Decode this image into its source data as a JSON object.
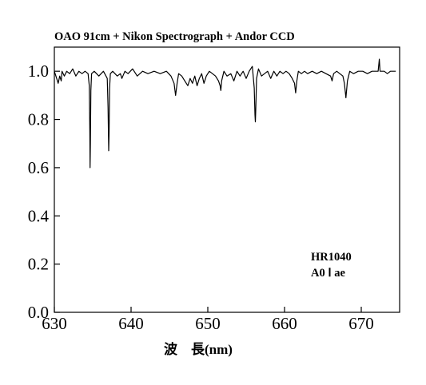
{
  "chart_data": {
    "type": "line",
    "title": "OAO 91cm + Nikon Spectrograph + Andor CCD",
    "xlabel": "波　長(nm)",
    "ylabel": "",
    "xlim": [
      630,
      675
    ],
    "ylim": [
      0.0,
      1.1
    ],
    "x_ticks": [
      630,
      640,
      650,
      660,
      670
    ],
    "x_tick_labels": [
      "630",
      "640",
      "650",
      "660",
      "670"
    ],
    "y_ticks": [
      0.0,
      0.2,
      0.4,
      0.6,
      0.8,
      1.0
    ],
    "y_tick_labels": [
      "0.0",
      "0.2",
      "0.4",
      "0.6",
      "0.8",
      "1.0"
    ],
    "grid": false,
    "annotations": [
      "HR1040",
      "A0 Ⅰ ae"
    ],
    "series": [
      {
        "color": "#000000",
        "x": [
          630.0,
          630.3,
          630.5,
          630.7,
          630.9,
          631.0,
          631.3,
          631.6,
          632.0,
          632.4,
          632.8,
          633.2,
          633.6,
          634.0,
          634.4,
          634.55,
          634.62,
          634.66,
          634.7,
          634.76,
          634.85,
          635.2,
          635.8,
          636.4,
          636.9,
          637.0,
          637.08,
          637.14,
          637.2,
          637.3,
          637.6,
          638.2,
          638.6,
          638.8,
          639.2,
          639.6,
          640.2,
          640.8,
          641.5,
          642.2,
          643.0,
          643.8,
          644.6,
          645.2,
          645.6,
          645.8,
          646.0,
          646.2,
          646.6,
          647.0,
          647.4,
          647.7,
          648.0,
          648.3,
          648.6,
          648.9,
          649.2,
          649.5,
          649.8,
          650.2,
          650.6,
          651.0,
          651.4,
          651.6,
          651.7,
          651.8,
          652.1,
          652.5,
          653.0,
          653.4,
          653.8,
          654.2,
          654.6,
          655.0,
          655.4,
          655.8,
          656.05,
          656.15,
          656.2,
          656.25,
          656.35,
          656.6,
          657.0,
          657.4,
          657.8,
          658.2,
          658.6,
          659.0,
          659.4,
          659.8,
          660.2,
          660.6,
          661.0,
          661.3,
          661.45,
          661.6,
          661.8,
          662.2,
          662.6,
          663.0,
          663.6,
          664.2,
          664.8,
          665.4,
          666.0,
          666.2,
          666.4,
          666.8,
          667.2,
          667.6,
          667.8,
          668.0,
          668.2,
          668.5,
          669.0,
          669.6,
          670.2,
          670.8,
          671.4,
          672.0,
          672.2,
          672.35,
          672.45,
          672.6,
          673.0,
          673.4,
          673.8,
          674.2,
          674.5
        ],
        "y": [
          1.0,
          0.97,
          0.95,
          0.98,
          0.96,
          1.0,
          0.98,
          1.0,
          0.99,
          1.01,
          0.98,
          1.0,
          0.99,
          1.0,
          0.99,
          0.94,
          0.75,
          0.6,
          0.7,
          0.92,
          0.99,
          1.0,
          0.98,
          1.0,
          0.97,
          0.85,
          0.67,
          0.75,
          0.93,
          0.99,
          1.0,
          0.98,
          0.99,
          0.97,
          1.0,
          0.99,
          1.01,
          0.98,
          1.0,
          0.99,
          1.0,
          0.99,
          1.0,
          0.98,
          0.95,
          0.9,
          0.95,
          0.99,
          0.98,
          0.96,
          0.94,
          0.97,
          0.95,
          0.98,
          0.94,
          0.97,
          0.99,
          0.95,
          0.98,
          1.0,
          0.99,
          0.98,
          0.96,
          0.94,
          0.92,
          0.96,
          1.0,
          0.98,
          0.99,
          0.96,
          1.0,
          0.98,
          1.0,
          0.97,
          1.0,
          1.02,
          0.93,
          0.82,
          0.79,
          0.84,
          0.97,
          1.01,
          0.98,
          0.99,
          1.0,
          0.97,
          1.0,
          0.98,
          1.0,
          0.99,
          1.0,
          0.99,
          0.97,
          0.95,
          0.91,
          0.96,
          1.0,
          0.99,
          1.0,
          0.99,
          1.0,
          0.99,
          1.0,
          0.99,
          0.98,
          0.96,
          0.99,
          1.0,
          0.99,
          0.98,
          0.95,
          0.89,
          0.96,
          1.0,
          0.99,
          1.0,
          1.0,
          0.99,
          1.0,
          1.0,
          1.0,
          1.05,
          1.0,
          1.0,
          1.0,
          0.99,
          1.0,
          1.0,
          1.0
        ]
      }
    ]
  }
}
